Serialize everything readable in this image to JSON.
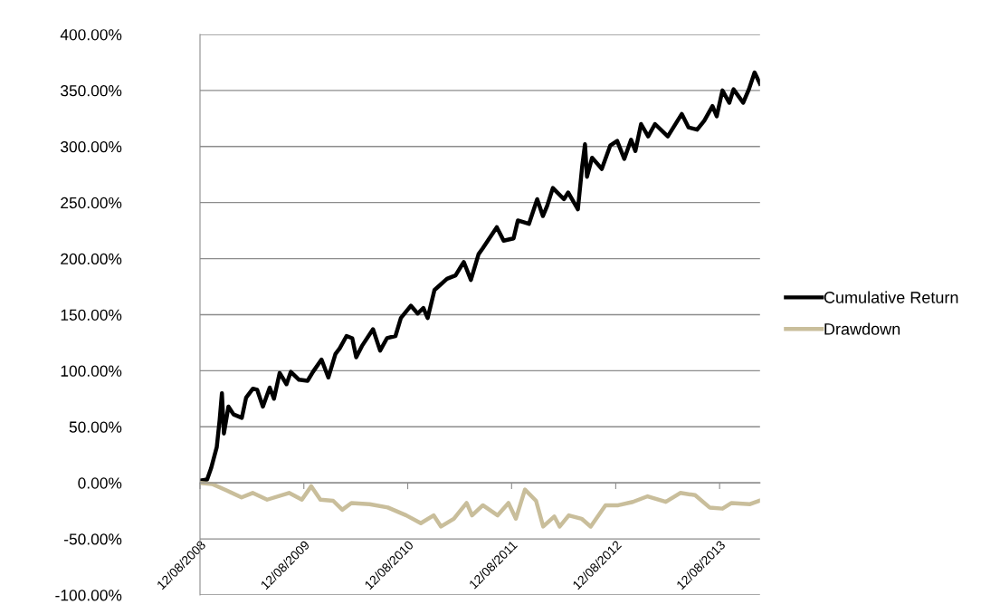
{
  "chart_data": {
    "type": "line",
    "xlim": [
      "2008-12-08",
      "2014-04-29"
    ],
    "xticks": [
      {
        "value": "2008-12-08",
        "label": "12/08/2008"
      },
      {
        "value": "2009-12-08",
        "label": "12/08/2009"
      },
      {
        "value": "2010-12-08",
        "label": "12/08/2010"
      },
      {
        "value": "2011-12-08",
        "label": "12/08/2011"
      },
      {
        "value": "2012-12-08",
        "label": "12/08/2012"
      },
      {
        "value": "2013-12-08",
        "label": "12/08/2013"
      }
    ],
    "ylim": [
      -100,
      400
    ],
    "yticks": [
      {
        "value": -100,
        "label": "-100.00%"
      },
      {
        "value": -50,
        "label": "-50.00%"
      },
      {
        "value": 0,
        "label": "0.00%"
      },
      {
        "value": 50,
        "label": "50.00%"
      },
      {
        "value": 100,
        "label": "100.00%"
      },
      {
        "value": 150,
        "label": "150.00%"
      },
      {
        "value": 200,
        "label": "200.00%"
      },
      {
        "value": 250,
        "label": "250.00%"
      },
      {
        "value": 300,
        "label": "300.00%"
      },
      {
        "value": 350,
        "label": "350.00%"
      },
      {
        "value": 400,
        "label": "400.00%"
      }
    ],
    "grid": "y",
    "legend": "right",
    "marker": "none",
    "line_style": "solid",
    "series": [
      {
        "name": "Cumulative Return",
        "color": "#000000",
        "x": [
          "2008-12-08",
          "2009-01-02",
          "2009-01-16",
          "2009-02-05",
          "2009-02-15",
          "2009-02-23",
          "2009-03-02",
          "2009-03-18",
          "2009-04-05",
          "2009-05-04",
          "2009-05-19",
          "2009-06-12",
          "2009-06-27",
          "2009-07-17",
          "2009-08-10",
          "2009-08-25",
          "2009-09-14",
          "2009-10-08",
          "2009-10-23",
          "2009-11-21",
          "2009-12-21",
          "2010-01-09",
          "2010-02-08",
          "2010-03-04",
          "2010-03-29",
          "2010-04-13",
          "2010-05-07",
          "2010-05-27",
          "2010-06-10",
          "2010-06-30",
          "2010-08-08",
          "2010-09-02",
          "2010-09-26",
          "2010-10-26",
          "2010-11-14",
          "2010-12-19",
          "2011-01-12",
          "2011-02-01",
          "2011-02-16",
          "2011-03-12",
          "2011-04-25",
          "2011-05-25",
          "2011-06-23",
          "2011-07-18",
          "2011-08-14",
          "2011-08-28",
          "2011-10-17",
          "2011-11-10",
          "2011-12-15",
          "2011-12-30",
          "2012-02-07",
          "2012-03-07",
          "2012-03-27",
          "2012-04-11",
          "2012-05-01",
          "2012-06-09",
          "2012-06-24",
          "2012-07-28",
          "2012-08-12",
          "2012-08-22",
          "2012-08-29",
          "2012-09-16",
          "2012-10-20",
          "2012-11-19",
          "2012-12-13",
          "2013-01-07",
          "2013-01-31",
          "2013-02-15",
          "2013-03-07",
          "2013-04-01",
          "2013-04-25",
          "2013-06-09",
          "2013-07-28",
          "2013-08-21",
          "2013-09-20",
          "2013-10-15",
          "2013-11-13",
          "2013-11-28",
          "2013-12-18",
          "2014-01-11",
          "2014-01-26",
          "2014-03-01",
          "2014-03-21",
          "2014-04-10",
          "2014-04-29"
        ],
        "values": [
          2,
          3,
          13,
          32,
          56,
          80,
          44,
          68,
          61,
          58,
          76,
          84,
          83,
          68,
          85,
          75,
          98,
          88,
          99,
          92,
          91,
          99,
          110,
          94,
          115,
          120,
          131,
          129,
          112,
          122,
          137,
          118,
          129,
          131,
          147,
          158,
          151,
          156,
          147,
          172,
          182,
          185,
          197,
          181,
          204,
          209,
          228,
          216,
          218,
          234,
          231,
          253,
          238,
          247,
          263,
          253,
          259,
          244,
          282,
          302,
          273,
          290,
          280,
          301,
          305,
          289,
          306,
          296,
          320,
          309,
          320,
          309,
          329,
          317,
          315,
          323,
          336,
          327,
          350,
          339,
          351,
          339,
          351,
          366,
          356
        ]
      },
      {
        "name": "Drawdown",
        "color": "#c9be9b",
        "x": [
          "2008-12-08",
          "2009-01-20",
          "2009-03-13",
          "2009-05-03",
          "2009-06-11",
          "2009-08-01",
          "2009-10-17",
          "2009-12-01",
          "2010-01-03",
          "2010-02-04",
          "2010-03-21",
          "2010-04-22",
          "2010-05-24",
          "2010-07-27",
          "2010-09-29",
          "2010-12-03",
          "2011-01-23",
          "2011-03-09",
          "2011-04-04",
          "2011-05-19",
          "2011-07-03",
          "2011-07-22",
          "2011-08-29",
          "2011-10-20",
          "2011-11-27",
          "2011-12-23",
          "2012-01-24",
          "2012-03-03",
          "2012-03-28",
          "2012-05-06",
          "2012-05-25",
          "2012-06-26",
          "2012-08-10",
          "2012-09-11",
          "2012-11-02",
          "2012-12-17",
          "2013-02-06",
          "2013-03-30",
          "2013-06-02",
          "2013-07-23",
          "2013-09-13",
          "2013-11-03",
          "2013-12-18",
          "2014-01-19",
          "2014-03-25",
          "2014-04-26"
        ],
        "values": [
          0,
          -1,
          -7,
          -13,
          -9,
          -15,
          -9,
          -15,
          -3,
          -15,
          -16,
          -24,
          -18,
          -19,
          -22,
          -29,
          -36,
          -29,
          -39,
          -32,
          -18,
          -29,
          -20,
          -29,
          -18,
          -32,
          -6,
          -16,
          -39,
          -30,
          -39,
          -29,
          -32,
          -39,
          -20,
          -20,
          -17,
          -12,
          -17,
          -9,
          -11,
          -22,
          -23,
          -18,
          -19,
          -16
        ]
      }
    ]
  }
}
